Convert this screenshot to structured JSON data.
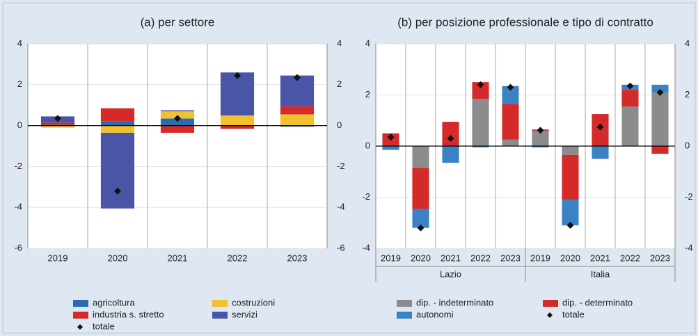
{
  "chart_data": [
    {
      "type": "bar",
      "stacked": true,
      "title": "(a) per settore",
      "categories": [
        "2019",
        "2020",
        "2021",
        "2022",
        "2023"
      ],
      "series": [
        {
          "name": "agricoltura",
          "color": "#2b6cb0",
          "values": [
            0.05,
            0.2,
            0.35,
            0,
            -0.05
          ]
        },
        {
          "name": "costruzioni",
          "color": "#f2c12e",
          "values": [
            -0.1,
            -0.35,
            0.35,
            0.5,
            0.55
          ]
        },
        {
          "name": "industria s. stretto",
          "color": "#d42a2a",
          "values": [
            0.1,
            0.65,
            -0.35,
            -0.15,
            0.4
          ]
        },
        {
          "name": "servizi",
          "color": "#4a55a8",
          "values": [
            0.3,
            -3.7,
            0.05,
            2.1,
            1.5
          ]
        }
      ],
      "total": {
        "name": "totale",
        "color": "#111111",
        "values": [
          0.35,
          -3.2,
          0.35,
          2.45,
          2.35
        ]
      },
      "ylim": [
        -6,
        4
      ],
      "yticks": [
        -6,
        -4,
        -2,
        0,
        2,
        4
      ],
      "grid": true
    },
    {
      "type": "bar",
      "stacked": true,
      "title": "(b) per posizione professionale e tipo di contratto",
      "categories": [
        "2019",
        "2020",
        "2021",
        "2022",
        "2023",
        "2019",
        "2020",
        "2021",
        "2022",
        "2023"
      ],
      "groups": [
        "Lazio",
        "Italia"
      ],
      "series": [
        {
          "name": "dip. - indeterminato",
          "color": "#8c8c8c",
          "values": [
            0,
            -0.85,
            0,
            1.85,
            0.25,
            0.6,
            -0.35,
            0,
            1.55,
            2.1
          ]
        },
        {
          "name": "dip. - determinato",
          "color": "#d42a2a",
          "values": [
            0.5,
            -1.6,
            0.95,
            0.65,
            1.4,
            0.05,
            -1.75,
            1.25,
            0.65,
            -0.3
          ]
        },
        {
          "name": "autonomi",
          "color": "#3b82c4",
          "values": [
            -0.15,
            -0.75,
            -0.65,
            -0.05,
            0.7,
            -0.05,
            -1.0,
            -0.5,
            0.2,
            0.3
          ]
        }
      ],
      "total": {
        "name": "totale",
        "color": "#111111",
        "values": [
          0.35,
          -3.2,
          0.3,
          2.4,
          2.3,
          0.62,
          -3.1,
          0.75,
          2.35,
          2.1
        ]
      },
      "ylim": [
        -4,
        4
      ],
      "yticks": [
        -4,
        -2,
        0,
        2,
        4
      ],
      "grid": true
    }
  ]
}
